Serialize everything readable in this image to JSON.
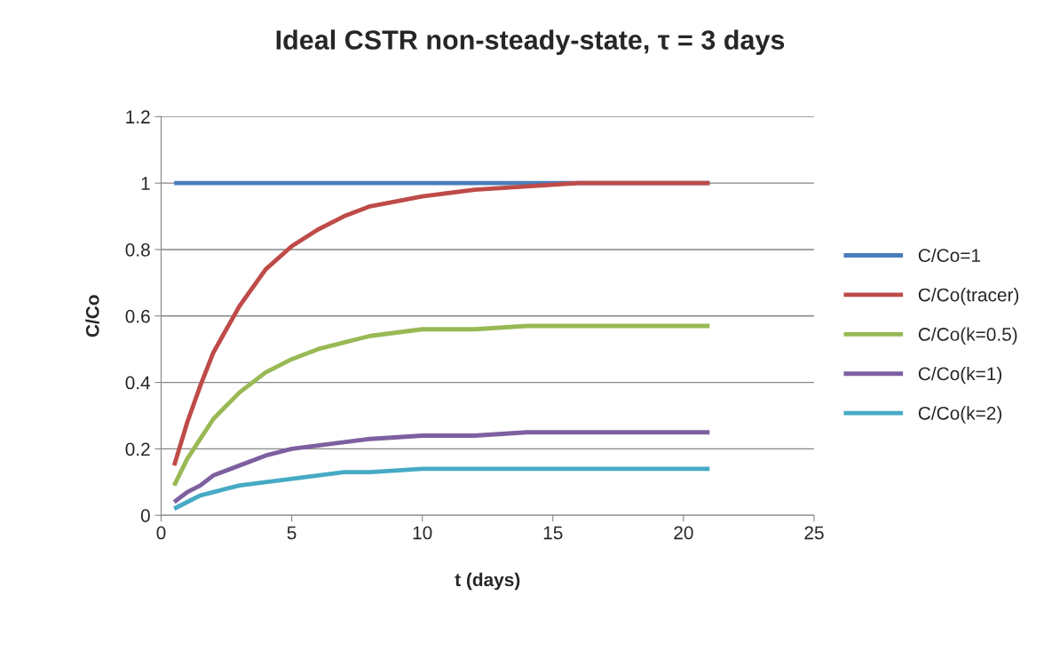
{
  "chart_data": {
    "type": "line",
    "title": "Ideal CSTR non-steady-state, τ = 3 days",
    "xlabel": "t (days)",
    "ylabel": "C/Co",
    "xlim": [
      0,
      25
    ],
    "xticks": [
      0,
      5,
      10,
      15,
      20,
      25
    ],
    "ylim": [
      0,
      1.2
    ],
    "yticks": [
      0,
      0.2,
      0.4,
      0.6,
      0.8,
      1,
      1.2
    ],
    "grid": "y",
    "legend": "right",
    "marker": "none",
    "line_style": "solid",
    "series": [
      {
        "name": "C/Co=1",
        "color": "#4a7ebb",
        "x": [
          0.5,
          21
        ],
        "values": [
          1,
          1
        ]
      },
      {
        "name": "C/Co(tracer)",
        "color": "#be4b48",
        "x": [
          0.5,
          1,
          1.5,
          2,
          3,
          4,
          5,
          6,
          7,
          8,
          10,
          12,
          14,
          16,
          18,
          21
        ],
        "values": [
          0.15,
          0.28,
          0.39,
          0.49,
          0.63,
          0.74,
          0.81,
          0.86,
          0.9,
          0.93,
          0.96,
          0.98,
          0.99,
          1,
          1,
          1
        ]
      },
      {
        "name": "C/Co(k=0.5)",
        "color": "#98b954",
        "x": [
          0.5,
          1,
          1.5,
          2,
          3,
          4,
          5,
          6,
          7,
          8,
          10,
          12,
          14,
          16,
          18,
          21
        ],
        "values": [
          0.09,
          0.17,
          0.23,
          0.29,
          0.37,
          0.43,
          0.47,
          0.5,
          0.52,
          0.54,
          0.56,
          0.56,
          0.57,
          0.57,
          0.57,
          0.57
        ]
      },
      {
        "name": "C/Co(k=1)",
        "color": "#7d60a0",
        "x": [
          0.5,
          1,
          1.5,
          2,
          3,
          4,
          5,
          6,
          7,
          8,
          10,
          12,
          14,
          16,
          18,
          21
        ],
        "values": [
          0.04,
          0.07,
          0.09,
          0.12,
          0.15,
          0.18,
          0.2,
          0.21,
          0.22,
          0.23,
          0.24,
          0.24,
          0.25,
          0.25,
          0.25,
          0.25
        ]
      },
      {
        "name": "C/Co(k=2)",
        "color": "#46aac5",
        "x": [
          0.5,
          1,
          1.5,
          2,
          3,
          4,
          5,
          6,
          7,
          8,
          10,
          12,
          14,
          16,
          18,
          21
        ],
        "values": [
          0.02,
          0.04,
          0.06,
          0.07,
          0.09,
          0.1,
          0.11,
          0.12,
          0.13,
          0.13,
          0.14,
          0.14,
          0.14,
          0.14,
          0.14,
          0.14
        ]
      }
    ]
  }
}
